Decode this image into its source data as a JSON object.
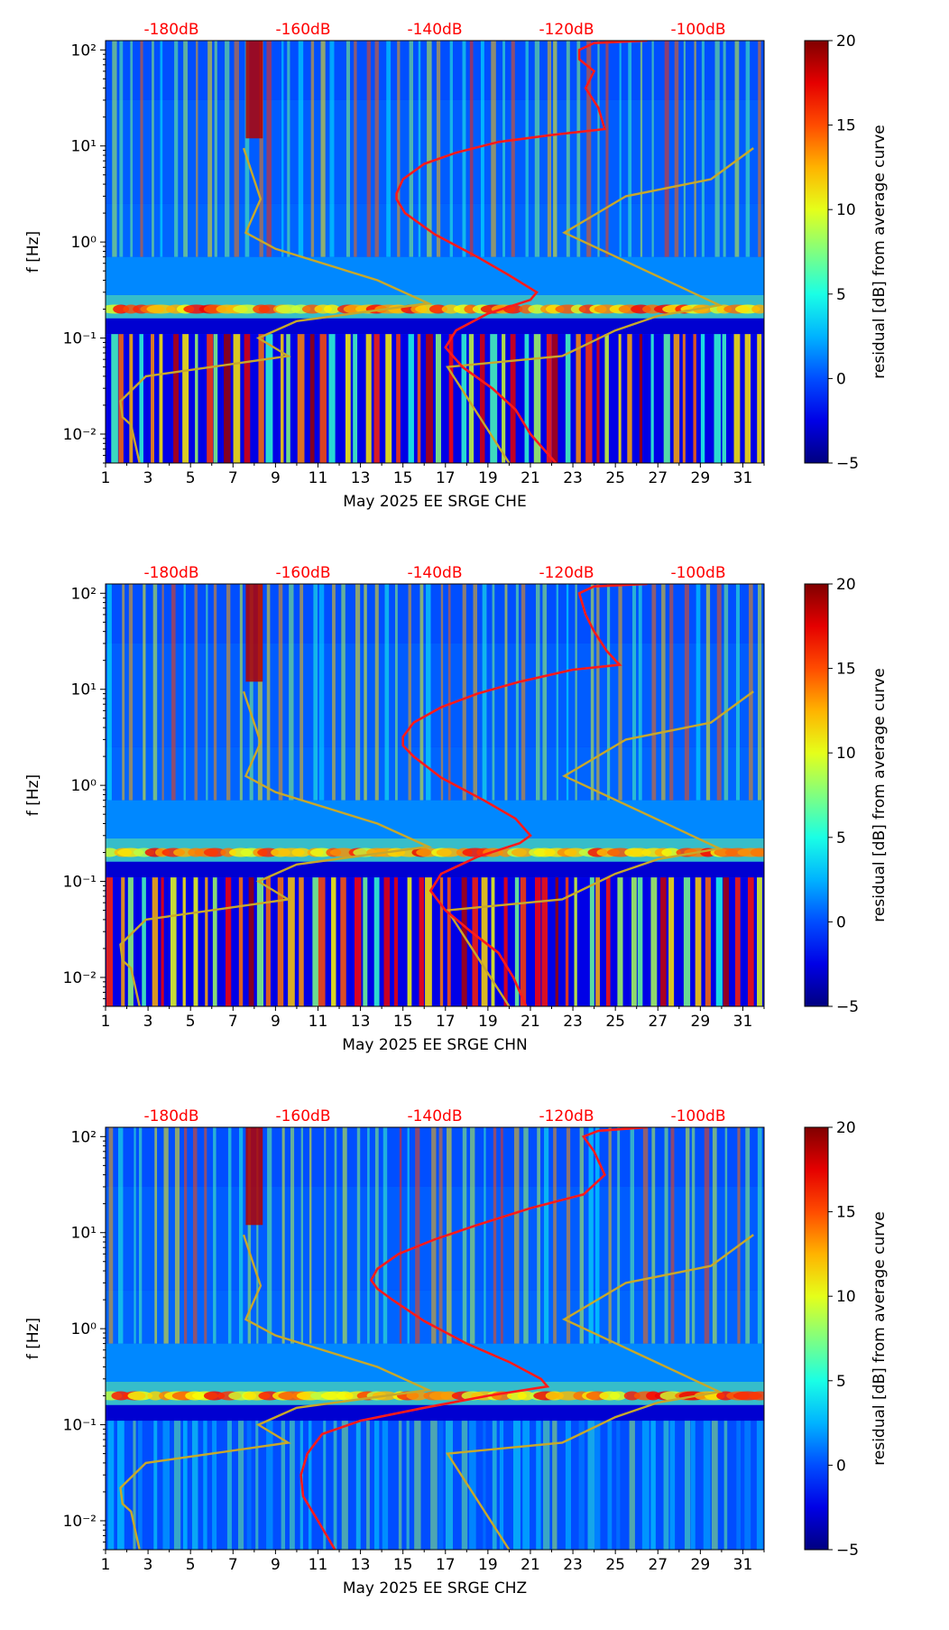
{
  "chart_data": [
    {
      "type": "heatmap",
      "xlabel": "May 2025 EE SRGE  CHE",
      "ylabel": "f [Hz]",
      "x_ticks": [
        "1",
        "3",
        "5",
        "7",
        "9",
        "11",
        "13",
        "15",
        "17",
        "19",
        "21",
        "23",
        "25",
        "27",
        "29",
        "31"
      ],
      "x_range": [
        1,
        32
      ],
      "y_ticks": [
        "10⁻²",
        "10⁻¹",
        "10⁰",
        "10¹",
        "10²"
      ],
      "y_range_hz": [
        0.005,
        125
      ],
      "top_axis_ticks": [
        "-180dB",
        "-160dB",
        "-140dB",
        "-120dB",
        "-100dB"
      ],
      "top_axis_color": "#ff0000",
      "colorbar": {
        "label": "residual [dB] from average curve",
        "ticks": [
          "20",
          "15",
          "10",
          "5",
          "0",
          "−5"
        ],
        "range": [
          -5,
          20
        ],
        "colormap": "jet"
      },
      "series": [
        {
          "name": "noise-model-high",
          "color": "#c8a82a",
          "points": [
            [
              7.5,
              9.5
            ],
            [
              8.3,
              2.8
            ],
            [
              7.6,
              1.25
            ],
            [
              9.0,
              0.85
            ],
            [
              13.8,
              0.4
            ],
            [
              16.2,
              0.23
            ],
            [
              10.0,
              0.15
            ],
            [
              8.2,
              0.1
            ],
            [
              9.6,
              0.065
            ],
            [
              2.9,
              0.04
            ],
            [
              1.7,
              0.022
            ],
            [
              1.8,
              0.015
            ],
            [
              2.2,
              0.0125
            ],
            [
              2.6,
              0.005
            ]
          ]
        },
        {
          "name": "noise-model-low",
          "color": "#c8a82a",
          "points": [
            [
              31.5,
              9.5
            ],
            [
              29.5,
              4.5
            ],
            [
              25.5,
              3.0
            ],
            [
              22.6,
              1.25
            ],
            [
              29.9,
              0.22
            ],
            [
              27.0,
              0.17
            ],
            [
              25.0,
              0.12
            ],
            [
              22.5,
              0.065
            ],
            [
              17.1,
              0.05
            ],
            [
              20.0,
              0.005
            ]
          ]
        },
        {
          "name": "median-psd",
          "color": "#ff1a1a",
          "points": [
            [
              26.5,
              125
            ],
            [
              24.0,
              118
            ],
            [
              23.3,
              100
            ],
            [
              23.3,
              80
            ],
            [
              24.0,
              60
            ],
            [
              23.6,
              40
            ],
            [
              24.2,
              25
            ],
            [
              24.5,
              15
            ],
            [
              22.0,
              13
            ],
            [
              19.5,
              11
            ],
            [
              17.5,
              8.5
            ],
            [
              16.0,
              6.5
            ],
            [
              15.0,
              4.5
            ],
            [
              14.7,
              3.2
            ],
            [
              14.7,
              2.8
            ],
            [
              15.1,
              2.0
            ],
            [
              16.5,
              1.2
            ],
            [
              18.5,
              0.7
            ],
            [
              20.0,
              0.45
            ],
            [
              21.3,
              0.3
            ],
            [
              21.0,
              0.25
            ],
            [
              19.0,
              0.18
            ],
            [
              17.5,
              0.12
            ],
            [
              17.0,
              0.08
            ],
            [
              17.8,
              0.05
            ],
            [
              19.2,
              0.03
            ],
            [
              20.3,
              0.018
            ],
            [
              21.0,
              0.01
            ],
            [
              22.2,
              0.005
            ]
          ]
        }
      ]
    },
    {
      "type": "heatmap",
      "xlabel": "May 2025 EE SRGE  CHN",
      "ylabel": "f [Hz]",
      "x_ticks": [
        "1",
        "3",
        "5",
        "7",
        "9",
        "11",
        "13",
        "15",
        "17",
        "19",
        "21",
        "23",
        "25",
        "27",
        "29",
        "31"
      ],
      "x_range": [
        1,
        32
      ],
      "y_ticks": [
        "10⁻²",
        "10⁻¹",
        "10⁰",
        "10¹",
        "10²"
      ],
      "y_range_hz": [
        0.005,
        125
      ],
      "top_axis_ticks": [
        "-180dB",
        "-160dB",
        "-140dB",
        "-120dB",
        "-100dB"
      ],
      "top_axis_color": "#ff0000",
      "colorbar": {
        "label": "residual [dB] from average curve",
        "ticks": [
          "20",
          "15",
          "10",
          "5",
          "0",
          "−5"
        ],
        "range": [
          -5,
          20
        ],
        "colormap": "jet"
      },
      "series": [
        {
          "name": "noise-model-high",
          "color": "#c8a82a",
          "points": [
            [
              7.5,
              9.5
            ],
            [
              8.3,
              2.8
            ],
            [
              7.6,
              1.25
            ],
            [
              9.0,
              0.85
            ],
            [
              13.8,
              0.4
            ],
            [
              16.2,
              0.23
            ],
            [
              10.0,
              0.15
            ],
            [
              8.2,
              0.1
            ],
            [
              9.6,
              0.065
            ],
            [
              2.9,
              0.04
            ],
            [
              1.7,
              0.022
            ],
            [
              1.8,
              0.015
            ],
            [
              2.2,
              0.0125
            ],
            [
              2.6,
              0.005
            ]
          ]
        },
        {
          "name": "noise-model-low",
          "color": "#c8a82a",
          "points": [
            [
              31.5,
              9.5
            ],
            [
              29.5,
              4.5
            ],
            [
              25.5,
              3.0
            ],
            [
              22.6,
              1.25
            ],
            [
              29.9,
              0.22
            ],
            [
              27.0,
              0.17
            ],
            [
              25.0,
              0.12
            ],
            [
              22.5,
              0.065
            ],
            [
              17.1,
              0.05
            ],
            [
              20.0,
              0.005
            ]
          ]
        },
        {
          "name": "median-psd",
          "color": "#ff1a1a",
          "points": [
            [
              26.5,
              125
            ],
            [
              24.0,
              118
            ],
            [
              23.3,
              100
            ],
            [
              23.6,
              60
            ],
            [
              24.0,
              40
            ],
            [
              24.6,
              25
            ],
            [
              25.2,
              18
            ],
            [
              23.0,
              16
            ],
            [
              20.5,
              12
            ],
            [
              18.5,
              9.0
            ],
            [
              16.8,
              6.5
            ],
            [
              15.5,
              4.5
            ],
            [
              15.0,
              3.2
            ],
            [
              15.0,
              2.6
            ],
            [
              15.5,
              2.0
            ],
            [
              16.8,
              1.2
            ],
            [
              18.8,
              0.7
            ],
            [
              20.3,
              0.45
            ],
            [
              21.0,
              0.3
            ],
            [
              20.5,
              0.25
            ],
            [
              18.5,
              0.18
            ],
            [
              16.8,
              0.12
            ],
            [
              16.3,
              0.08
            ],
            [
              17.0,
              0.05
            ],
            [
              18.2,
              0.03
            ],
            [
              19.5,
              0.018
            ],
            [
              20.2,
              0.01
            ],
            [
              20.8,
              0.005
            ]
          ]
        }
      ]
    },
    {
      "type": "heatmap",
      "xlabel": "May 2025 EE SRGE  CHZ",
      "ylabel": "f [Hz]",
      "x_ticks": [
        "1",
        "3",
        "5",
        "7",
        "9",
        "11",
        "13",
        "15",
        "17",
        "19",
        "21",
        "23",
        "25",
        "27",
        "29",
        "31"
      ],
      "x_range": [
        1,
        32
      ],
      "y_ticks": [
        "10⁻²",
        "10⁻¹",
        "10⁰",
        "10¹",
        "10²"
      ],
      "y_range_hz": [
        0.005,
        125
      ],
      "top_axis_ticks": [
        "-180dB",
        "-160dB",
        "-140dB",
        "-120dB",
        "-100dB"
      ],
      "top_axis_color": "#ff0000",
      "colorbar": {
        "label": "residual [dB] from average curve",
        "ticks": [
          "20",
          "15",
          "10",
          "5",
          "0",
          "−5"
        ],
        "range": [
          -5,
          20
        ],
        "colormap": "jet"
      },
      "series": [
        {
          "name": "noise-model-high",
          "color": "#c8a82a",
          "points": [
            [
              7.5,
              9.5
            ],
            [
              8.3,
              2.8
            ],
            [
              7.6,
              1.25
            ],
            [
              9.0,
              0.85
            ],
            [
              13.8,
              0.4
            ],
            [
              16.2,
              0.23
            ],
            [
              10.0,
              0.15
            ],
            [
              8.2,
              0.1
            ],
            [
              9.6,
              0.065
            ],
            [
              2.9,
              0.04
            ],
            [
              1.7,
              0.022
            ],
            [
              1.8,
              0.015
            ],
            [
              2.2,
              0.0125
            ],
            [
              2.6,
              0.005
            ]
          ]
        },
        {
          "name": "noise-model-low",
          "color": "#c8a82a",
          "points": [
            [
              31.5,
              9.5
            ],
            [
              29.5,
              4.5
            ],
            [
              25.5,
              3.0
            ],
            [
              22.6,
              1.25
            ],
            [
              29.9,
              0.22
            ],
            [
              27.0,
              0.17
            ],
            [
              25.0,
              0.12
            ],
            [
              22.5,
              0.065
            ],
            [
              17.1,
              0.05
            ],
            [
              20.0,
              0.005
            ]
          ]
        },
        {
          "name": "median-psd",
          "color": "#ff1a1a",
          "points": [
            [
              26.5,
              125
            ],
            [
              24.2,
              115
            ],
            [
              23.5,
              100
            ],
            [
              24.0,
              70
            ],
            [
              24.5,
              40
            ],
            [
              23.5,
              25
            ],
            [
              21.0,
              18
            ],
            [
              18.5,
              12
            ],
            [
              16.5,
              8.5
            ],
            [
              14.8,
              6.0
            ],
            [
              13.8,
              4.2
            ],
            [
              13.5,
              3.2
            ],
            [
              13.8,
              2.6
            ],
            [
              14.5,
              2.0
            ],
            [
              16.0,
              1.2
            ],
            [
              18.0,
              0.7
            ],
            [
              20.0,
              0.45
            ],
            [
              21.5,
              0.3
            ],
            [
              21.8,
              0.25
            ],
            [
              19.0,
              0.2
            ],
            [
              16.0,
              0.15
            ],
            [
              13.0,
              0.11
            ],
            [
              11.2,
              0.08
            ],
            [
              10.5,
              0.05
            ],
            [
              10.2,
              0.03
            ],
            [
              10.3,
              0.018
            ],
            [
              11.0,
              0.01
            ],
            [
              11.8,
              0.005
            ]
          ]
        }
      ]
    }
  ]
}
